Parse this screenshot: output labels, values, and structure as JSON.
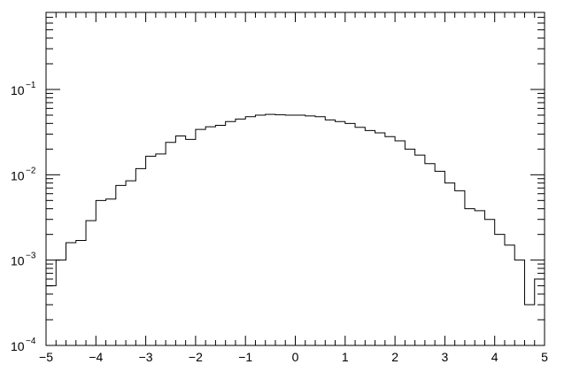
{
  "chart_data": {
    "type": "histogram",
    "title": "",
    "xlabel": "",
    "ylabel": "",
    "xlim": [
      -5,
      5
    ],
    "ylim": [
      0.0001,
      0.8
    ],
    "yscale": "log",
    "grid": false,
    "legend": "none",
    "x_ticks": [
      -5,
      -4,
      -3,
      -2,
      -1,
      0,
      1,
      2,
      3,
      4,
      5
    ],
    "x_tick_labels": [
      "−5",
      "−4",
      "−3",
      "−2",
      "−1",
      "0",
      "1",
      "2",
      "3",
      "4",
      "5"
    ],
    "y_ticks": [
      {
        "value": 0.1,
        "base": "10",
        "exp": "−1"
      },
      {
        "value": 0.01,
        "base": "10",
        "exp": "−2"
      },
      {
        "value": 0.001,
        "base": "10",
        "exp": "−3"
      },
      {
        "value": 0.0001,
        "base": "10",
        "exp": "−4"
      }
    ],
    "bin_edges": [
      -5,
      -4.8,
      -4.6,
      -4.4,
      -4.2,
      -4,
      -3.8,
      -3.6,
      -3.4,
      -3.2,
      -3,
      -2.8,
      -2.6,
      -2.4,
      -2.2,
      -2,
      -1.8,
      -1.6,
      -1.4,
      -1.2,
      -1,
      -0.8,
      -0.6,
      -0.4,
      -0.2,
      0,
      0.2,
      0.4,
      0.6,
      0.8,
      1,
      1.2,
      1.4,
      1.6,
      1.8,
      2,
      2.2,
      2.4,
      2.6,
      2.8,
      3,
      3.2,
      3.4,
      3.6,
      3.8,
      4,
      4.2,
      4.4,
      4.6,
      4.8,
      5
    ],
    "values": [
      0.0005,
      0.001,
      0.0016,
      0.0017,
      0.0029,
      0.005,
      0.0052,
      0.0075,
      0.0085,
      0.0118,
      0.0165,
      0.0175,
      0.024,
      0.0285,
      0.026,
      0.034,
      0.0365,
      0.038,
      0.042,
      0.045,
      0.048,
      0.05,
      0.051,
      0.0505,
      0.05,
      0.05,
      0.049,
      0.048,
      0.044,
      0.042,
      0.04,
      0.036,
      0.033,
      0.031,
      0.028,
      0.025,
      0.02,
      0.017,
      0.0135,
      0.011,
      0.008,
      0.0065,
      0.004,
      0.0038,
      0.003,
      0.002,
      0.0015,
      0.001,
      0.0003,
      0.0006
    ],
    "colors": {
      "line": "#000000",
      "frame": "#000000",
      "background": "#ffffff"
    }
  }
}
